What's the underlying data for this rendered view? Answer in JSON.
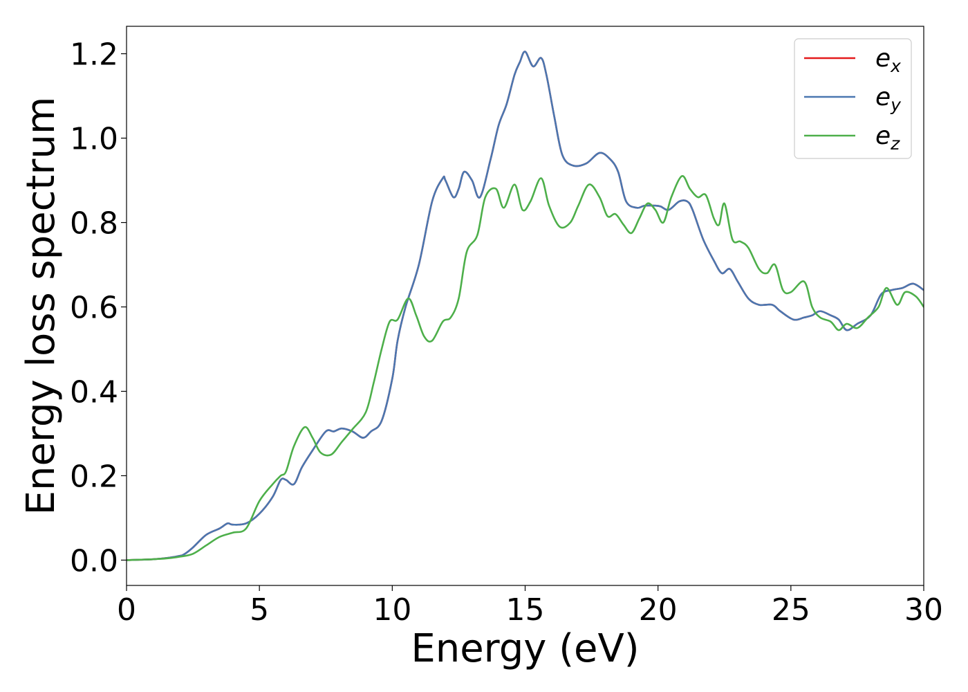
{
  "chart_data": {
    "type": "line",
    "title": "",
    "xlabel": "Energy (eV)",
    "ylabel": "Energy loss spectrum",
    "xlim": [
      0,
      30
    ],
    "ylim": [
      -0.06,
      1.265
    ],
    "xticks": [
      0,
      5,
      10,
      15,
      20,
      25,
      30
    ],
    "xtick_labels": [
      "0",
      "5",
      "10",
      "15",
      "20",
      "25",
      "30"
    ],
    "yticks": [
      0.0,
      0.2,
      0.4,
      0.6,
      0.8,
      1.0,
      1.2
    ],
    "ytick_labels": [
      "0.0",
      "0.2",
      "0.4",
      "0.6",
      "0.8",
      "1.0",
      "1.2"
    ],
    "grid": false,
    "legend_position": "top-right",
    "series": [
      {
        "name": "e_x",
        "legend_base": "e",
        "legend_sub": "x",
        "color": "#e41a1c",
        "x": [
          0,
          0.5,
          1,
          1.5,
          2,
          2.2,
          2.5,
          3,
          3.5,
          3.8,
          4,
          4.5,
          5,
          5.5,
          5.8,
          6,
          6.3,
          6.6,
          7,
          7.5,
          7.8,
          8.1,
          8.5,
          8.9,
          9.2,
          9.6,
          10,
          10.2,
          10.5,
          11,
          11.5,
          11.9,
          12,
          12.3,
          12.5,
          12.7,
          13,
          13.3,
          13.7,
          14,
          14.3,
          14.6,
          14.8,
          15,
          15.3,
          15.6,
          15.8,
          16.1,
          16.4,
          16.8,
          17.3,
          17.8,
          18.2,
          18.5,
          18.8,
          19.2,
          19.5,
          19.9,
          20.1,
          20.4,
          20.8,
          21.1,
          21.3,
          21.7,
          22.1,
          22.4,
          22.7,
          23,
          23.4,
          23.8,
          24.3,
          24.6,
          25.1,
          25.5,
          25.8,
          26.1,
          26.5,
          26.8,
          27.1,
          27.5,
          28,
          28.4,
          28.8,
          29.2,
          29.6,
          30
        ],
        "y": [
          0.0,
          0.001,
          0.002,
          0.005,
          0.01,
          0.015,
          0.03,
          0.06,
          0.075,
          0.087,
          0.084,
          0.087,
          0.11,
          0.15,
          0.19,
          0.19,
          0.18,
          0.22,
          0.26,
          0.305,
          0.305,
          0.312,
          0.305,
          0.29,
          0.305,
          0.33,
          0.43,
          0.52,
          0.6,
          0.7,
          0.85,
          0.905,
          0.9,
          0.86,
          0.88,
          0.92,
          0.9,
          0.86,
          0.95,
          1.03,
          1.08,
          1.15,
          1.18,
          1.205,
          1.17,
          1.19,
          1.15,
          1.05,
          0.96,
          0.935,
          0.94,
          0.965,
          0.95,
          0.92,
          0.85,
          0.835,
          0.84,
          0.84,
          0.838,
          0.83,
          0.85,
          0.85,
          0.83,
          0.76,
          0.71,
          0.68,
          0.69,
          0.66,
          0.62,
          0.605,
          0.605,
          0.59,
          0.57,
          0.575,
          0.58,
          0.59,
          0.58,
          0.57,
          0.545,
          0.56,
          0.58,
          0.63,
          0.64,
          0.645,
          0.655,
          0.64
        ]
      },
      {
        "name": "e_y",
        "legend_base": "e",
        "legend_sub": "y",
        "color": "#4a77b0",
        "x": [
          0,
          0.5,
          1,
          1.5,
          2,
          2.2,
          2.5,
          3,
          3.5,
          3.8,
          4,
          4.5,
          5,
          5.5,
          5.8,
          6,
          6.3,
          6.6,
          7,
          7.5,
          7.8,
          8.1,
          8.5,
          8.9,
          9.2,
          9.6,
          10,
          10.2,
          10.5,
          11,
          11.5,
          11.9,
          12,
          12.3,
          12.5,
          12.7,
          13,
          13.3,
          13.7,
          14,
          14.3,
          14.6,
          14.8,
          15,
          15.3,
          15.6,
          15.8,
          16.1,
          16.4,
          16.8,
          17.3,
          17.8,
          18.2,
          18.5,
          18.8,
          19.2,
          19.5,
          19.9,
          20.1,
          20.4,
          20.8,
          21.1,
          21.3,
          21.7,
          22.1,
          22.4,
          22.7,
          23,
          23.4,
          23.8,
          24.3,
          24.6,
          25.1,
          25.5,
          25.8,
          26.1,
          26.5,
          26.8,
          27.1,
          27.5,
          28,
          28.4,
          28.8,
          29.2,
          29.6,
          30
        ],
        "y": [
          0.0,
          0.001,
          0.002,
          0.005,
          0.01,
          0.015,
          0.03,
          0.06,
          0.075,
          0.087,
          0.084,
          0.087,
          0.11,
          0.15,
          0.19,
          0.19,
          0.18,
          0.22,
          0.26,
          0.305,
          0.305,
          0.312,
          0.305,
          0.29,
          0.305,
          0.33,
          0.43,
          0.52,
          0.6,
          0.7,
          0.85,
          0.905,
          0.9,
          0.86,
          0.88,
          0.92,
          0.9,
          0.86,
          0.95,
          1.03,
          1.08,
          1.15,
          1.18,
          1.205,
          1.17,
          1.19,
          1.15,
          1.05,
          0.96,
          0.935,
          0.94,
          0.965,
          0.95,
          0.92,
          0.85,
          0.835,
          0.84,
          0.84,
          0.838,
          0.83,
          0.85,
          0.85,
          0.83,
          0.76,
          0.71,
          0.68,
          0.69,
          0.66,
          0.62,
          0.605,
          0.605,
          0.59,
          0.57,
          0.575,
          0.58,
          0.59,
          0.58,
          0.57,
          0.545,
          0.56,
          0.58,
          0.63,
          0.64,
          0.645,
          0.655,
          0.64
        ]
      },
      {
        "name": "e_z",
        "legend_base": "e",
        "legend_sub": "z",
        "color": "#4daf4a",
        "x": [
          0,
          0.5,
          1,
          1.5,
          2,
          2.5,
          3,
          3.5,
          4,
          4.5,
          5,
          5.5,
          5.8,
          6,
          6.3,
          6.7,
          7,
          7.3,
          7.7,
          8.1,
          8.5,
          9,
          9.3,
          9.6,
          9.9,
          10.2,
          10.6,
          10.9,
          11.2,
          11.5,
          11.9,
          12.2,
          12.5,
          12.8,
          13.2,
          13.5,
          13.9,
          14.2,
          14.6,
          14.9,
          15.2,
          15.6,
          15.9,
          16.3,
          16.7,
          17,
          17.4,
          17.8,
          18.1,
          18.4,
          18.7,
          19,
          19.3,
          19.6,
          19.9,
          20.2,
          20.5,
          20.9,
          21.2,
          21.5,
          21.8,
          22.1,
          22.3,
          22.5,
          22.8,
          23.1,
          23.4,
          23.8,
          24.1,
          24.4,
          24.7,
          25,
          25.5,
          25.8,
          26.1,
          26.5,
          26.8,
          27.1,
          27.5,
          27.9,
          28.3,
          28.6,
          29,
          29.3,
          29.7,
          30
        ],
        "y": [
          0.0,
          0.001,
          0.002,
          0.004,
          0.008,
          0.015,
          0.035,
          0.055,
          0.065,
          0.075,
          0.14,
          0.18,
          0.2,
          0.21,
          0.27,
          0.315,
          0.29,
          0.255,
          0.25,
          0.28,
          0.31,
          0.35,
          0.42,
          0.5,
          0.565,
          0.57,
          0.62,
          0.58,
          0.53,
          0.52,
          0.565,
          0.575,
          0.62,
          0.73,
          0.77,
          0.86,
          0.88,
          0.835,
          0.89,
          0.83,
          0.85,
          0.905,
          0.84,
          0.79,
          0.8,
          0.84,
          0.89,
          0.86,
          0.815,
          0.82,
          0.795,
          0.775,
          0.81,
          0.845,
          0.83,
          0.8,
          0.86,
          0.91,
          0.88,
          0.86,
          0.865,
          0.81,
          0.795,
          0.845,
          0.76,
          0.755,
          0.74,
          0.69,
          0.68,
          0.7,
          0.64,
          0.635,
          0.66,
          0.6,
          0.575,
          0.565,
          0.545,
          0.56,
          0.55,
          0.575,
          0.6,
          0.645,
          0.605,
          0.635,
          0.625,
          0.6
        ]
      }
    ]
  }
}
